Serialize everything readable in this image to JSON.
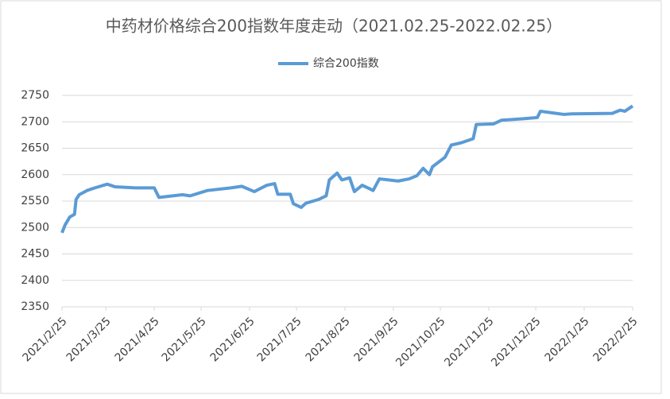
{
  "chart_data": {
    "type": "line",
    "title": "中药材价格综合200指数年度走动（2021.02.25-2022.02.25）",
    "legend": "top",
    "grid": true,
    "x": [
      "2021/2/25",
      "2021/2/27",
      "2021/3/2",
      "2021/3/5",
      "2021/3/6",
      "2021/3/8",
      "2021/3/13",
      "2021/3/18",
      "2021/3/26",
      "2021/3/31",
      "2021/4/13",
      "2021/4/25",
      "2021/4/28",
      "2021/5/13",
      "2021/5/18",
      "2021/5/29",
      "2021/6/13",
      "2021/6/20",
      "2021/6/28",
      "2021/7/6",
      "2021/7/11",
      "2021/7/13",
      "2021/7/21",
      "2021/7/23",
      "2021/7/28",
      "2021/7/31",
      "2021/8/8",
      "2021/8/13",
      "2021/8/15",
      "2021/8/20",
      "2021/8/23",
      "2021/8/28",
      "2021/8/31",
      "2021/9/5",
      "2021/9/10",
      "2021/9/12",
      "2021/9/16",
      "2021/9/22",
      "2021/9/28",
      "2021/10/5",
      "2021/10/10",
      "2021/10/14",
      "2021/10/18",
      "2021/10/20",
      "2021/10/28",
      "2021/11/1",
      "2021/11/7",
      "2021/11/12",
      "2021/11/15",
      "2021/11/17",
      "2021/11/28",
      "2021/12/3",
      "2021/12/18",
      "2021/12/26",
      "2021/12/28",
      "2022/1/7",
      "2022/1/12",
      "2022/1/17",
      "2022/2/12",
      "2022/2/17",
      "2022/2/20",
      "2022/2/25"
    ],
    "series": [
      {
        "name": "综合200指数",
        "color": "#5b9bd5",
        "values": [
          2490,
          2505,
          2520,
          2525,
          2553,
          2562,
          2570,
          2575,
          2582,
          2577,
          2575,
          2575,
          2557,
          2562,
          2560,
          2570,
          2575,
          2578,
          2568,
          2580,
          2583,
          2563,
          2563,
          2545,
          2538,
          2546,
          2553,
          2560,
          2590,
          2603,
          2590,
          2594,
          2568,
          2580,
          2573,
          2570,
          2592,
          2590,
          2588,
          2592,
          2598,
          2612,
          2600,
          2615,
          2633,
          2656,
          2660,
          2665,
          2668,
          2695,
          2696,
          2703,
          2706,
          2708,
          2720,
          2716,
          2714,
          2715,
          2716,
          2722,
          2720,
          2730
        ]
      }
    ],
    "xlim": [
      "2021/2/25",
      "2022/2/25"
    ],
    "xticks": [
      "2021/2/25",
      "2021/3/25",
      "2021/4/25",
      "2021/5/25",
      "2021/6/25",
      "2021/7/25",
      "2021/8/25",
      "2021/9/25",
      "2021/10/25",
      "2021/11/25",
      "2021/12/25",
      "2022/1/25",
      "2022/2/25"
    ],
    "ylim": [
      2350,
      2750
    ],
    "yticks": [
      2350,
      2400,
      2450,
      2500,
      2550,
      2600,
      2650,
      2700,
      2750
    ]
  }
}
